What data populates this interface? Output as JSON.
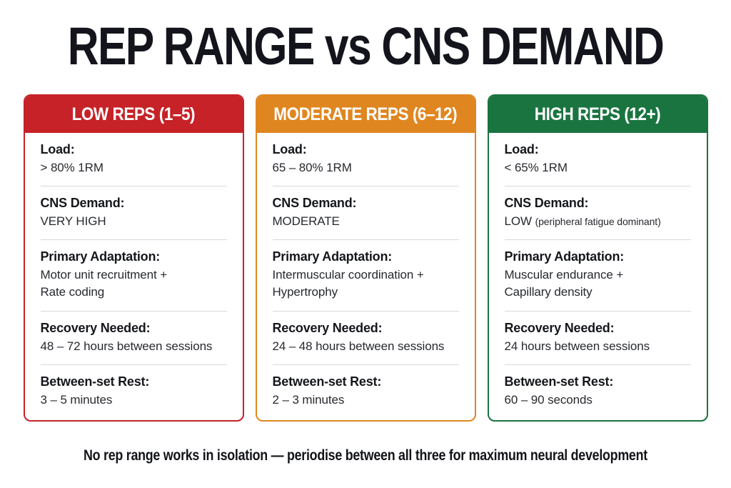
{
  "title": "REP RANGE vs CNS DEMAND",
  "footer": "No rep range works in isolation — periodise between all three for maximum neural development",
  "divider_color": "#d8d8d8",
  "columns": [
    {
      "header": "LOW REPS (1–5)",
      "color": "#C62227",
      "fields": [
        {
          "label": "Load:",
          "value": "> 80% 1RM"
        },
        {
          "label": "CNS Demand:",
          "value": "VERY HIGH"
        },
        {
          "label": "Primary Adaptation:",
          "value": "Motor unit recruitment +\nRate coding"
        },
        {
          "label": "Recovery Needed:",
          "value": "48 – 72 hours between sessions"
        },
        {
          "label": "Between-set Rest:",
          "value": "3 – 5 minutes"
        }
      ]
    },
    {
      "header": "MODERATE REPS (6–12)",
      "color": "#E08620",
      "fields": [
        {
          "label": "Load:",
          "value": "65 – 80% 1RM"
        },
        {
          "label": "CNS Demand:",
          "value": "MODERATE"
        },
        {
          "label": "Primary Adaptation:",
          "value": "Intermuscular coordination +\nHypertrophy"
        },
        {
          "label": "Recovery Needed:",
          "value": "24 – 48 hours between sessions"
        },
        {
          "label": "Between-set Rest:",
          "value": "2 – 3 minutes"
        }
      ]
    },
    {
      "header": "HIGH REPS (12+)",
      "color": "#1A7440",
      "fields": [
        {
          "label": "Load:",
          "value": "< 65% 1RM"
        },
        {
          "label": "CNS Demand:",
          "value": "LOW",
          "note": "(peripheral fatigue dominant)"
        },
        {
          "label": "Primary Adaptation:",
          "value": "Muscular endurance +\nCapillary density"
        },
        {
          "label": "Recovery Needed:",
          "value": "24 hours between sessions"
        },
        {
          "label": "Between-set Rest:",
          "value": "60 – 90 seconds"
        }
      ]
    }
  ]
}
